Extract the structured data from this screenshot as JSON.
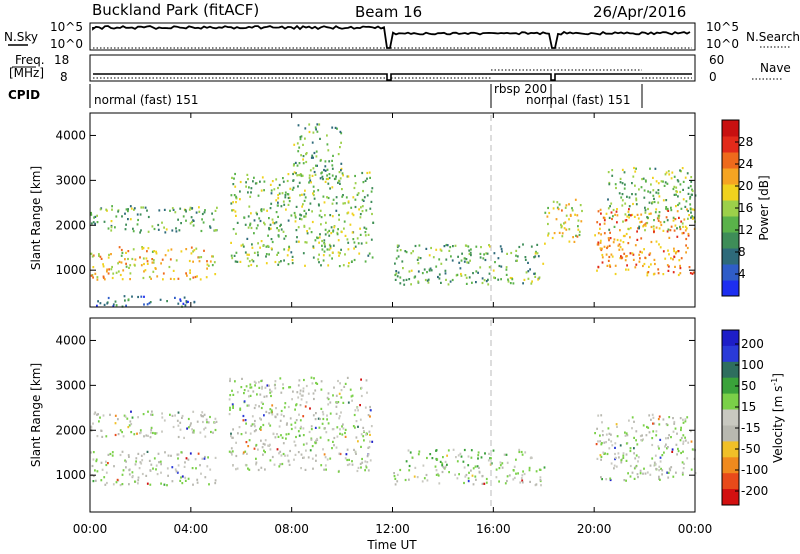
{
  "header": {
    "station": "Buckland Park (fitACF)",
    "beam": "Beam 16",
    "date": "26/Apr/2016"
  },
  "top_panels": {
    "nsky_label": "N.Sky",
    "nsky_ticks": [
      "10^5",
      "10^0"
    ],
    "nsearch_label": "N.Search",
    "nsearch_ticks": [
      "10^5",
      "10^0"
    ],
    "freq_label_1": "Freq.",
    "freq_label_2": "[MHz]",
    "freq_ticks": [
      "18",
      "8"
    ],
    "nave_label": "Nave",
    "nave_ticks": [
      "60",
      "0"
    ],
    "cpid_label": "CPID",
    "cpid_segments": [
      "normal (fast) 151",
      "rbsp 200",
      "normal (fast) 151"
    ]
  },
  "colors": {
    "power_scale": [
      "#1d2ef0",
      "#2f5dc8",
      "#2e6a7a",
      "#3e8d58",
      "#5ab24a",
      "#9cd04a",
      "#f0d21e",
      "#f5a422",
      "#ee6a1c",
      "#e22a1a",
      "#c81010"
    ],
    "velocity_scale": [
      "#1e1ec8",
      "#2a3ad8",
      "#2e6e5e",
      "#3aa23a",
      "#7ad048",
      "#c8c8c0",
      "#b8b8b0",
      "#f0c028",
      "#f08a1e",
      "#e84a1a",
      "#d21010"
    ]
  },
  "chart_data": [
    {
      "type": "heatmap",
      "name": "power",
      "ylabel": "Slant Range [km]",
      "xlabel": "",
      "xticks": [
        "00:00",
        "04:00",
        "08:00",
        "12:00",
        "16:00",
        "20:00",
        "00:00"
      ],
      "yticks": [
        1000,
        2000,
        3000,
        4000
      ],
      "xlim_hours": [
        0,
        24
      ],
      "ylim_km": [
        180,
        4500
      ],
      "colorbar": {
        "label": "Power [dB]",
        "ticks": [
          4,
          8,
          12,
          16,
          20,
          24,
          28
        ],
        "range": [
          0,
          32
        ]
      },
      "features": [
        {
          "t0": 0.0,
          "t1": 5.0,
          "r0": 1850,
          "r1": 2450,
          "level": 12
        },
        {
          "t0": 0.0,
          "t1": 5.0,
          "r0": 800,
          "r1": 1550,
          "level": 20
        },
        {
          "t0": 0.0,
          "t1": 4.5,
          "r0": 200,
          "r1": 450,
          "level": 6
        },
        {
          "t0": 5.5,
          "t1": 11.2,
          "r0": 1100,
          "r1": 3200,
          "level": 14
        },
        {
          "t0": 8.0,
          "t1": 10.0,
          "r0": 3000,
          "r1": 4300,
          "level": 12
        },
        {
          "t0": 12.0,
          "t1": 18.0,
          "r0": 700,
          "r1": 1600,
          "level": 12
        },
        {
          "t0": 18.0,
          "t1": 19.5,
          "r0": 1600,
          "r1": 2600,
          "level": 18
        },
        {
          "t0": 20.0,
          "t1": 24.0,
          "r0": 900,
          "r1": 2400,
          "level": 24
        },
        {
          "t0": 20.5,
          "t1": 24.0,
          "r0": 1900,
          "r1": 3300,
          "level": 14
        }
      ]
    },
    {
      "type": "heatmap",
      "name": "velocity",
      "ylabel": "Slant Range [km]",
      "xlabel": "Time UT",
      "xticks": [
        "00:00",
        "04:00",
        "08:00",
        "12:00",
        "16:00",
        "20:00",
        "00:00"
      ],
      "yticks": [
        1000,
        2000,
        3000,
        4000
      ],
      "xlim_hours": [
        0,
        24
      ],
      "ylim_km": [
        180,
        4500
      ],
      "colorbar": {
        "label": "Velocity [m s",
        "label_sup": "-1",
        "label_end": "]",
        "ticks": [
          200,
          100,
          50,
          15,
          -15,
          -50,
          -100,
          -200
        ]
      },
      "features": [
        {
          "t0": 0.0,
          "t1": 5.0,
          "r0": 1850,
          "r1": 2450,
          "level": 0
        },
        {
          "t0": 0.0,
          "t1": 5.0,
          "r0": 800,
          "r1": 1550,
          "level": 0
        },
        {
          "t0": 5.5,
          "t1": 11.2,
          "r0": 1100,
          "r1": 3200,
          "level": -15
        },
        {
          "t0": 12.5,
          "t1": 17.5,
          "r0": 1200,
          "r1": 1600,
          "level": 40
        },
        {
          "t0": 12.0,
          "t1": 18.0,
          "r0": 800,
          "r1": 1200,
          "level": -15
        },
        {
          "t0": 20.0,
          "t1": 24.0,
          "r0": 900,
          "r1": 2400,
          "level": -15
        }
      ]
    }
  ]
}
